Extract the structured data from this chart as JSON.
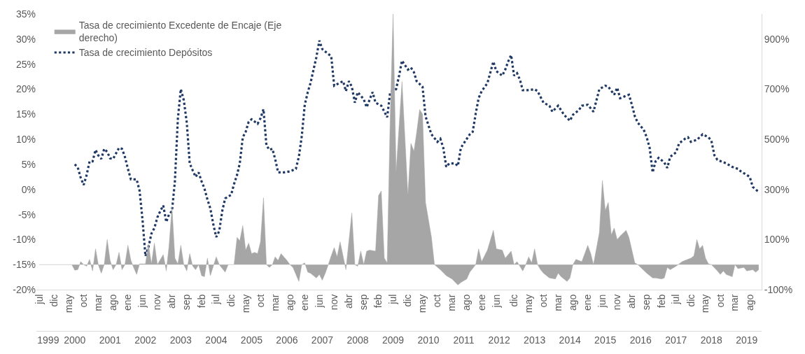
{
  "chart_data": {
    "type": "line",
    "legend": "top left",
    "xlim": [
      "1999-06",
      "2019-12"
    ],
    "xticks": [
      {
        "value": "1999-07",
        "label": "jul"
      },
      {
        "value": "1999-12",
        "label": "dic"
      },
      {
        "value": "2000-05",
        "label": "may"
      },
      {
        "value": "2000-10",
        "label": "oct"
      },
      {
        "value": "2001-03",
        "label": "mar"
      },
      {
        "value": "2001-08",
        "label": "ago"
      },
      {
        "value": "2002-01",
        "label": "ene"
      },
      {
        "value": "2002-06",
        "label": "jun"
      },
      {
        "value": "2002-11",
        "label": "nov"
      },
      {
        "value": "2003-04",
        "label": "abr"
      },
      {
        "value": "2003-09",
        "label": "sep"
      },
      {
        "value": "2004-02",
        "label": "feb"
      },
      {
        "value": "2004-07",
        "label": "jul"
      },
      {
        "value": "2004-12",
        "label": "dic"
      },
      {
        "value": "2005-05",
        "label": "may"
      },
      {
        "value": "2005-10",
        "label": "oct"
      },
      {
        "value": "2006-03",
        "label": "mar"
      },
      {
        "value": "2006-08",
        "label": "ago"
      },
      {
        "value": "2007-01",
        "label": "ene"
      },
      {
        "value": "2007-06",
        "label": "jun"
      },
      {
        "value": "2007-11",
        "label": "nov"
      },
      {
        "value": "2008-04",
        "label": "abr"
      },
      {
        "value": "2008-09",
        "label": "sep"
      },
      {
        "value": "2009-02",
        "label": "feb"
      },
      {
        "value": "2009-07",
        "label": "jul"
      },
      {
        "value": "2009-12",
        "label": "dic"
      },
      {
        "value": "2010-05",
        "label": "may"
      },
      {
        "value": "2010-10",
        "label": "oct"
      },
      {
        "value": "2011-03",
        "label": "mar"
      },
      {
        "value": "2011-08",
        "label": "ago"
      },
      {
        "value": "2012-01",
        "label": "ene"
      },
      {
        "value": "2012-06",
        "label": "jun"
      },
      {
        "value": "2012-12",
        "label": "dic"
      },
      {
        "value": "2013-05",
        "label": "may"
      },
      {
        "value": "2013-10",
        "label": "oct"
      },
      {
        "value": "2014-03",
        "label": "mar"
      },
      {
        "value": "2014-08",
        "label": "ago"
      },
      {
        "value": "2015-01",
        "label": "ene"
      },
      {
        "value": "2015-06",
        "label": "jun"
      },
      {
        "value": "2015-11",
        "label": "nov"
      },
      {
        "value": "2016-04",
        "label": "abr"
      },
      {
        "value": "2016-09",
        "label": "sep"
      },
      {
        "value": "2017-02",
        "label": "feb"
      },
      {
        "value": "2017-07",
        "label": "jul"
      },
      {
        "value": "2017-12",
        "label": "dic"
      },
      {
        "value": "2018-05",
        "label": "may"
      },
      {
        "value": "2018-10",
        "label": "oct"
      },
      {
        "value": "2019-03",
        "label": "mar"
      },
      {
        "value": "2019-08",
        "label": "ago"
      }
    ],
    "x2lim": [
      "1999-06",
      "2019-12"
    ],
    "x2ticks": [
      {
        "value": "1999-10",
        "label": "1999"
      },
      {
        "value": "2000-07",
        "label": "2000"
      },
      {
        "value": "2001-07",
        "label": "2001"
      },
      {
        "value": "2002-07",
        "label": "2002"
      },
      {
        "value": "2003-07",
        "label": "2003"
      },
      {
        "value": "2004-07",
        "label": "2004"
      },
      {
        "value": "2005-07",
        "label": "2005"
      },
      {
        "value": "2006-07",
        "label": "2006"
      },
      {
        "value": "2007-07",
        "label": "2007"
      },
      {
        "value": "2008-07",
        "label": "2008"
      },
      {
        "value": "2009-07",
        "label": "2009"
      },
      {
        "value": "2010-07",
        "label": "2010"
      },
      {
        "value": "2011-07",
        "label": "2011"
      },
      {
        "value": "2012-07",
        "label": "2012"
      },
      {
        "value": "2013-07",
        "label": "2013"
      },
      {
        "value": "2014-07",
        "label": "2014"
      },
      {
        "value": "2015-07",
        "label": "2015"
      },
      {
        "value": "2016-07",
        "label": "2016"
      },
      {
        "value": "2017-07",
        "label": "2017"
      },
      {
        "value": "2018-07",
        "label": "2018"
      },
      {
        "value": "2019-07",
        "label": "2019"
      }
    ],
    "ylim": [
      -20,
      35
    ],
    "yticks": [
      {
        "value": -20,
        "label": "-20%"
      },
      {
        "value": -15,
        "label": "-15%"
      },
      {
        "value": -10,
        "label": "-10%"
      },
      {
        "value": -5,
        "label": "-5%"
      },
      {
        "value": 0,
        "label": "0%"
      },
      {
        "value": 5,
        "label": "5%"
      },
      {
        "value": 10,
        "label": "10%"
      },
      {
        "value": 15,
        "label": "15%"
      },
      {
        "value": 20,
        "label": "20%"
      },
      {
        "value": 25,
        "label": "25%"
      },
      {
        "value": 30,
        "label": "30%"
      },
      {
        "value": 35,
        "label": "35%"
      }
    ],
    "y2lim": [
      -100,
      1000
    ],
    "y2ticks": [
      {
        "value": -100,
        "label": "-100%"
      },
      {
        "value": 100,
        "label": "100%"
      },
      {
        "value": 300,
        "label": "300%"
      },
      {
        "value": 500,
        "label": "500%"
      },
      {
        "value": 700,
        "label": "700%"
      },
      {
        "value": 900,
        "label": "900%"
      }
    ],
    "series": [
      {
        "name": "Tasa de crecimiento Excedente de Encaje (Eje derecho)",
        "type": "area",
        "axis": "y2",
        "color": "#a6a6a6",
        "x": [
          "1999-07",
          "2000-06",
          "2000-07",
          "2000-08",
          "2000-09",
          "2000-10",
          "2000-11",
          "2000-12",
          "2001-01",
          "2001-02",
          "2001-03",
          "2001-04",
          "2001-05",
          "2001-06",
          "2001-07",
          "2001-08",
          "2001-09",
          "2001-10",
          "2001-11",
          "2001-12",
          "2002-01",
          "2002-02",
          "2002-03",
          "2002-04",
          "2002-05",
          "2002-07",
          "2002-08",
          "2002-09",
          "2002-10",
          "2002-11",
          "2003-01",
          "2003-02",
          "2003-03",
          "2003-04",
          "2003-05",
          "2003-06",
          "2003-07",
          "2003-08",
          "2003-09",
          "2003-10",
          "2003-11",
          "2003-12",
          "2004-01",
          "2004-02",
          "2004-03",
          "2004-04",
          "2004-05",
          "2004-07",
          "2004-08",
          "2004-10",
          "2004-11",
          "2005-01",
          "2005-02",
          "2005-03",
          "2005-04",
          "2005-05",
          "2005-06",
          "2005-07",
          "2005-08",
          "2005-09",
          "2005-10",
          "2005-11",
          "2005-12",
          "2006-01",
          "2006-02",
          "2006-03",
          "2006-04",
          "2006-05",
          "2006-07",
          "2006-08",
          "2006-09",
          "2006-11",
          "2006-12",
          "2007-01",
          "2007-02",
          "2007-03",
          "2007-04",
          "2007-05",
          "2007-06",
          "2007-07",
          "2007-08",
          "2007-09",
          "2007-10",
          "2007-11",
          "2007-12",
          "2008-01",
          "2008-03",
          "2008-05",
          "2008-06",
          "2008-07",
          "2008-08",
          "2008-09",
          "2008-10",
          "2008-11",
          "2009-01",
          "2009-02",
          "2009-03",
          "2009-04",
          "2009-05",
          "2009-06",
          "2009-07",
          "2009-08",
          "2009-10",
          "2009-12",
          "2010-01",
          "2010-02",
          "2010-03",
          "2010-04",
          "2010-05",
          "2010-06",
          "2010-08",
          "2010-09",
          "2010-11",
          "2011-01",
          "2011-03",
          "2011-05",
          "2011-06",
          "2011-08",
          "2011-09",
          "2011-11",
          "2011-12",
          "2012-01",
          "2012-03",
          "2012-05",
          "2012-06",
          "2012-08",
          "2012-09",
          "2012-11",
          "2012-12",
          "2013-01",
          "2013-03",
          "2013-04",
          "2013-05",
          "2013-06",
          "2013-07",
          "2013-08",
          "2013-09",
          "2013-10",
          "2013-12",
          "2014-02",
          "2014-03",
          "2014-04",
          "2014-06",
          "2014-07",
          "2014-08",
          "2014-09",
          "2014-11",
          "2015-01",
          "2015-02",
          "2015-03",
          "2015-05",
          "2015-06",
          "2015-07",
          "2015-08",
          "2015-09",
          "2015-10",
          "2015-11",
          "2015-12",
          "2016-02",
          "2016-03",
          "2016-05",
          "2016-06",
          "2016-07",
          "2016-09",
          "2016-11",
          "2016-12",
          "2017-02",
          "2017-03",
          "2017-04",
          "2017-05",
          "2017-07",
          "2017-09",
          "2017-10",
          "2017-12",
          "2018-01",
          "2018-02",
          "2018-03",
          "2018-04",
          "2018-05",
          "2018-06",
          "2018-07",
          "2018-09",
          "2018-10",
          "2018-11",
          "2018-12",
          "2019-02",
          "2019-03",
          "2019-04",
          "2019-06",
          "2019-07",
          "2019-09",
          "2019-10",
          "2019-11"
        ],
        "values": [
          0,
          0,
          -22,
          -20,
          12,
          0,
          -6,
          21,
          -25,
          63,
          0,
          -34,
          0,
          100,
          17,
          -20,
          0,
          49,
          -20,
          0,
          77,
          17,
          -11,
          -39,
          3,
          3,
          81,
          3,
          86,
          0,
          40,
          -25,
          72,
          230,
          26,
          3,
          77,
          0,
          -25,
          44,
          -6,
          -20,
          0,
          -44,
          -48,
          26,
          -44,
          31,
          0,
          -30,
          0,
          0,
          109,
          95,
          156,
          58,
          86,
          44,
          49,
          44,
          91,
          267,
          0,
          -11,
          0,
          31,
          17,
          44,
          17,
          0,
          -11,
          -67,
          0,
          7,
          -30,
          -34,
          -44,
          -53,
          -39,
          -62,
          -34,
          0,
          35,
          68,
          31,
          91,
          -20,
          206,
          0,
          -6,
          54,
          0,
          54,
          58,
          54,
          276,
          294,
          26,
          7,
          581,
          1000,
          369,
          730,
          276,
          484,
          452,
          526,
          619,
          600,
          248,
          109,
          0,
          -20,
          -44,
          -57,
          -81,
          -71,
          -57,
          -30,
          0,
          63,
          12,
          58,
          137,
          63,
          58,
          26,
          54,
          0,
          12,
          -25,
          0,
          31,
          7,
          63,
          0,
          -20,
          -34,
          -53,
          -57,
          -34,
          -48,
          -67,
          -53,
          0,
          21,
          12,
          77,
          44,
          0,
          128,
          336,
          216,
          248,
          119,
          146,
          100,
          114,
          137,
          109,
          7,
          0,
          -11,
          -34,
          -53,
          -53,
          -57,
          -53,
          -11,
          -20,
          -6,
          12,
          17,
          26,
          35,
          100,
          63,
          77,
          26,
          3,
          0,
          -25,
          -39,
          -25,
          -39,
          -48,
          0,
          -16,
          -11,
          -25,
          -20,
          -30,
          -20
        ]
      },
      {
        "name": "Tasa de crecimiento Depósitos",
        "color": "#1f3864",
        "line_style": "dotted",
        "x": [
          "2000-07",
          "2000-08",
          "2000-09",
          "2000-10",
          "2000-11",
          "2000-12",
          "2001-01",
          "2001-02",
          "2001-03",
          "2001-04",
          "2001-05",
          "2001-06",
          "2001-07",
          "2001-08",
          "2001-10",
          "2001-11",
          "2001-12",
          "2002-01",
          "2002-02",
          "2002-04",
          "2002-05",
          "2002-06",
          "2002-07",
          "2002-08",
          "2002-09",
          "2002-10",
          "2002-11",
          "2002-12",
          "2003-01",
          "2003-02",
          "2003-03",
          "2003-04",
          "2003-05",
          "2003-06",
          "2003-07",
          "2003-08",
          "2003-09",
          "2003-10",
          "2003-11",
          "2003-12",
          "2004-01",
          "2004-02",
          "2004-03",
          "2004-04",
          "2004-05",
          "2004-06",
          "2004-07",
          "2004-08",
          "2004-09",
          "2004-10",
          "2004-11",
          "2004-12",
          "2005-01",
          "2005-02",
          "2005-03",
          "2005-04",
          "2005-05",
          "2005-06",
          "2005-07",
          "2005-09",
          "2005-10",
          "2005-11",
          "2005-12",
          "2006-01",
          "2006-02",
          "2006-03",
          "2006-04",
          "2006-06",
          "2006-08",
          "2006-10",
          "2006-11",
          "2006-12",
          "2007-01",
          "2007-02",
          "2007-03",
          "2007-05",
          "2007-06",
          "2007-07",
          "2007-09",
          "2007-10",
          "2007-11",
          "2008-02",
          "2008-03",
          "2008-04",
          "2008-05",
          "2008-06",
          "2008-07",
          "2008-09",
          "2008-10",
          "2008-12",
          "2009-01",
          "2009-03",
          "2009-05",
          "2009-06",
          "2009-08",
          "2009-09",
          "2009-10",
          "2009-12",
          "2010-01",
          "2010-02",
          "2010-03",
          "2010-05",
          "2010-06",
          "2010-07",
          "2010-08",
          "2010-10",
          "2010-11",
          "2010-12",
          "2011-01",
          "2011-02",
          "2011-04",
          "2011-05",
          "2011-06",
          "2011-07",
          "2011-09",
          "2011-10",
          "2011-11",
          "2011-12",
          "2012-01",
          "2012-03",
          "2012-04",
          "2012-05",
          "2012-06",
          "2012-08",
          "2012-09",
          "2012-10",
          "2012-11",
          "2012-12",
          "2013-01",
          "2013-02",
          "2013-03",
          "2013-05",
          "2013-07",
          "2013-08",
          "2013-10",
          "2013-12",
          "2014-01",
          "2014-03",
          "2014-05",
          "2014-07",
          "2014-08",
          "2014-10",
          "2014-11",
          "2015-01",
          "2015-03",
          "2015-04",
          "2015-05",
          "2015-07",
          "2015-08",
          "2015-10",
          "2015-11",
          "2015-12",
          "2016-03",
          "2016-04",
          "2016-05",
          "2016-06",
          "2016-08",
          "2016-09",
          "2016-10",
          "2016-11",
          "2016-12",
          "2017-01",
          "2017-03",
          "2017-04",
          "2017-05",
          "2017-07",
          "2017-08",
          "2017-10",
          "2017-11",
          "2017-12",
          "2018-02",
          "2018-04",
          "2018-06",
          "2018-07",
          "2018-08",
          "2018-09",
          "2018-12",
          "2019-02",
          "2019-04",
          "2019-05",
          "2019-07",
          "2019-08",
          "2019-09",
          "2019-11"
        ],
        "values": [
          5.0,
          4.4,
          2.3,
          0.9,
          2.9,
          5.6,
          5.6,
          7.9,
          6.8,
          6.1,
          8.1,
          7.5,
          6.2,
          6.1,
          8.3,
          8.1,
          6.5,
          4.1,
          2.0,
          2.0,
          -0.2,
          -6.1,
          -13.3,
          -11.5,
          -8.8,
          -7.7,
          -5.6,
          -4.3,
          -3.2,
          -6.5,
          -5.0,
          -4.3,
          1.6,
          14.2,
          20.0,
          17.8,
          13.3,
          5.2,
          3.8,
          2.5,
          3.4,
          1.6,
          0.2,
          -2.0,
          -3.8,
          -7.0,
          -9.5,
          -8.3,
          -4.3,
          -1.8,
          -1.4,
          -1.1,
          1.1,
          2.9,
          5.2,
          10.4,
          11.5,
          13.5,
          14.0,
          13.1,
          14.2,
          16.0,
          8.8,
          7.9,
          8.1,
          6.1,
          3.4,
          3.4,
          3.6,
          4.1,
          6.5,
          10.6,
          16.9,
          19.4,
          21.2,
          26.4,
          29.7,
          28.0,
          27.0,
          26.6,
          20.7,
          21.6,
          19.6,
          21.6,
          20.5,
          17.3,
          19.4,
          18.0,
          16.4,
          19.4,
          17.3,
          16.7,
          14.4,
          19.4,
          20.0,
          22.7,
          25.7,
          23.9,
          24.3,
          23.4,
          21.6,
          20.5,
          14.6,
          12.8,
          11.0,
          9.5,
          10.1,
          8.3,
          4.5,
          5.2,
          5.2,
          4.7,
          8.3,
          9.2,
          11.0,
          11.5,
          15.1,
          18.2,
          19.6,
          21.2,
          23.4,
          25.5,
          23.6,
          22.7,
          23.9,
          25.5,
          26.8,
          22.7,
          23.2,
          21.8,
          19.8,
          19.8,
          20.0,
          19.6,
          17.3,
          16.7,
          15.5,
          16.7,
          14.9,
          13.7,
          14.9,
          15.8,
          16.7,
          16.9,
          15.5,
          17.8,
          20.0,
          20.7,
          20.5,
          18.9,
          20.3,
          18.2,
          18.9,
          16.9,
          14.6,
          13.3,
          11.9,
          10.4,
          8.3,
          3.4,
          5.6,
          6.3,
          5.4,
          4.3,
          6.5,
          7.4,
          9.2,
          10.1,
          10.4,
          9.5,
          9.9,
          11.0,
          10.4,
          9.7,
          6.8,
          5.9,
          5.2,
          4.5,
          4.1,
          3.6,
          2.9,
          2.5,
          0.5,
          -0.5
        ]
      }
    ]
  }
}
